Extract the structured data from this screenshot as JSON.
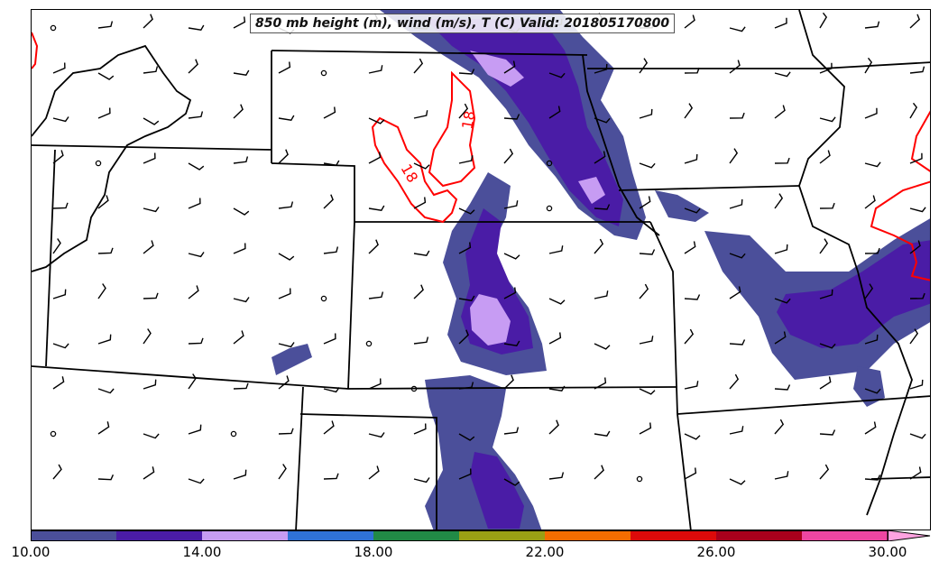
{
  "title": "850 mb height (m), wind (m/s), T (C) Valid: 201805170800",
  "colorbar": {
    "tick_labels": [
      "10.00",
      "14.00",
      "18.00",
      "22.00",
      "26.00",
      "30.00"
    ],
    "colors": [
      "#4b4f9a",
      "#4a1ca6",
      "#c79cf3",
      "#2f72d6",
      "#218a46",
      "#9aa014",
      "#f46d00",
      "#dd0a0a",
      "#a8001c",
      "#ee46a2",
      "#ffa3e0"
    ]
  },
  "contour_labels": [
    "18",
    "18"
  ],
  "colors": {
    "isotherm": "#ff0000",
    "borders": "#000000"
  }
}
